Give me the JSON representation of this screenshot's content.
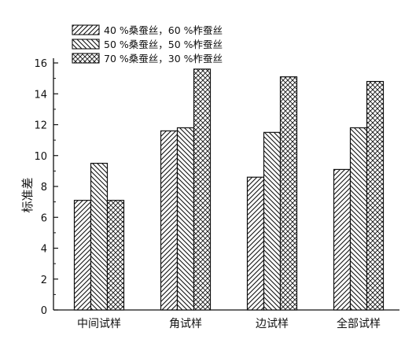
{
  "chart_data": {
    "type": "bar",
    "ylabel": "标准差",
    "ylim": [
      0,
      16
    ],
    "yticks": [
      0,
      2,
      4,
      6,
      8,
      10,
      12,
      14,
      16
    ],
    "categories": [
      "中间试样",
      "角试样",
      "边试样",
      "全部试样"
    ],
    "legend_position": "top-left",
    "grid": false,
    "series": [
      {
        "name": "40 %桑蚕丝，60 %柞蚕丝",
        "pattern": "forward-hatch",
        "values": [
          7.1,
          11.6,
          8.6,
          9.1
        ]
      },
      {
        "name": "50 %桑蚕丝，50 %柞蚕丝",
        "pattern": "back-hatch",
        "values": [
          9.5,
          11.8,
          11.5,
          11.8
        ]
      },
      {
        "name": "70 %桑蚕丝，30 %柞蚕丝",
        "pattern": "cross-hatch",
        "values": [
          7.1,
          15.6,
          15.1,
          14.8
        ]
      }
    ],
    "colors": {
      "ink": "#111111",
      "background": "#ffffff"
    }
  }
}
